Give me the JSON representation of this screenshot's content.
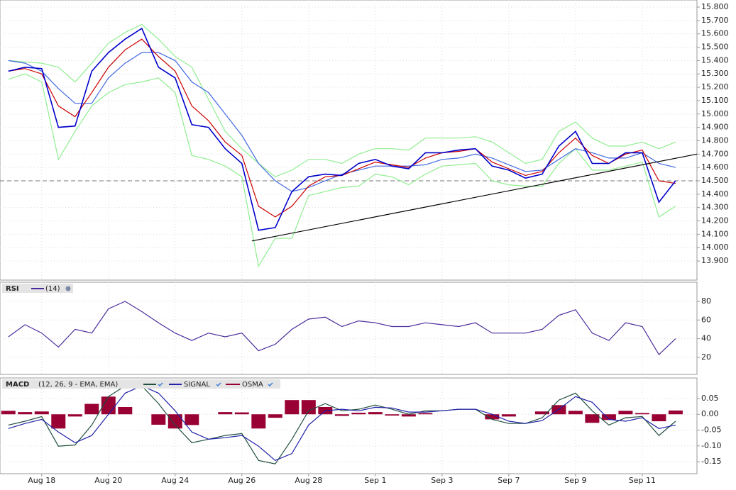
{
  "chart_data": [
    {
      "type": "line",
      "x": [
        -1,
        -0.5,
        0,
        0.5,
        1,
        1.5,
        2,
        2.5,
        3,
        3.5,
        4,
        4.5,
        5,
        5.5,
        6,
        6.5,
        7,
        7.5,
        8,
        8.5,
        9,
        9.5,
        10,
        10.5,
        11,
        11.5,
        12,
        12.5,
        13,
        13.5,
        14,
        14.5,
        15,
        15.5,
        16,
        16.5,
        17,
        17.5,
        18,
        18.5,
        19
      ],
      "xlim": [
        -1.25,
        19.64
      ],
      "ylim": [
        13.757,
        15.853
      ],
      "yticks": [
        {
          "value": 15.8,
          "label": "15.800"
        },
        {
          "value": 15.7,
          "label": "15.700"
        },
        {
          "value": 15.6,
          "label": "15.600"
        },
        {
          "value": 15.5,
          "label": "15.500"
        },
        {
          "value": 15.4,
          "label": "15.400"
        },
        {
          "value": 15.3,
          "label": "15.300"
        },
        {
          "value": 15.2,
          "label": "15.200"
        },
        {
          "value": 15.1,
          "label": "15.100"
        },
        {
          "value": 15,
          "label": "15.000"
        },
        {
          "value": 14.9,
          "label": "14.900"
        },
        {
          "value": 14.8,
          "label": "14.800"
        },
        {
          "value": 14.7,
          "label": "14.700"
        },
        {
          "value": 14.6,
          "label": "14.600"
        },
        {
          "value": 14.5,
          "label": "14.500"
        },
        {
          "value": 14.4,
          "label": "14.400"
        },
        {
          "value": 14.3,
          "label": "14.300"
        },
        {
          "value": 14.2,
          "label": "14.200"
        },
        {
          "value": 14.1,
          "label": "14.100"
        },
        {
          "value": 14,
          "label": "14.000"
        },
        {
          "value": 13.9,
          "label": "13.900"
        }
      ],
      "grid": true,
      "reference_line": 14.5,
      "trendline": {
        "x": [
          6.3,
          19.64
        ],
        "values": [
          14.05,
          14.7
        ],
        "color": "#000000"
      },
      "series": [
        {
          "color": "#90ee90",
          "values": [
            15.4,
            15.39,
            15.38,
            15.35,
            15.24,
            15.38,
            15.53,
            15.61,
            15.67,
            15.56,
            15.43,
            15.35,
            15.11,
            14.87,
            14.74,
            14.63,
            14.53,
            14.58,
            14.66,
            14.66,
            14.63,
            14.7,
            14.74,
            14.74,
            14.73,
            14.82,
            14.82,
            14.82,
            14.83,
            14.79,
            14.71,
            14.63,
            14.66,
            14.87,
            14.94,
            14.82,
            14.76,
            14.76,
            14.79,
            14.74,
            14.79
          ]
        },
        {
          "color": "#90ee90",
          "values": [
            15.26,
            15.3,
            15.24,
            14.66,
            14.87,
            15.06,
            15.16,
            15.22,
            15.24,
            15.27,
            15.16,
            14.69,
            14.66,
            14.61,
            14.53,
            13.86,
            14.07,
            14.07,
            14.39,
            14.42,
            14.45,
            14.46,
            14.55,
            14.53,
            14.47,
            14.55,
            14.61,
            14.62,
            14.63,
            14.5,
            14.47,
            14.46,
            14.46,
            14.63,
            14.74,
            14.58,
            14.58,
            14.61,
            14.64,
            14.23,
            14.31
          ]
        },
        {
          "color": "#4169e1",
          "values": [
            15.4,
            15.38,
            15.32,
            15.19,
            15.08,
            15.08,
            15.27,
            15.38,
            15.46,
            15.46,
            15.4,
            15.24,
            15.16,
            15.0,
            14.84,
            14.63,
            14.5,
            14.42,
            14.45,
            14.5,
            14.55,
            14.58,
            14.61,
            14.61,
            14.61,
            14.62,
            14.66,
            14.67,
            14.7,
            14.67,
            14.62,
            14.57,
            14.58,
            14.66,
            14.74,
            14.71,
            14.67,
            14.67,
            14.71,
            14.63,
            14.6
          ]
        },
        {
          "color": "#cc0000",
          "values": [
            15.32,
            15.34,
            15.3,
            15.06,
            14.98,
            15.16,
            15.35,
            15.48,
            15.56,
            15.43,
            15.32,
            15.06,
            14.95,
            14.79,
            14.69,
            14.31,
            14.23,
            14.31,
            14.46,
            14.53,
            14.54,
            14.59,
            14.64,
            14.62,
            14.6,
            14.67,
            14.71,
            14.72,
            14.74,
            14.64,
            14.59,
            14.54,
            14.57,
            14.71,
            14.82,
            14.69,
            14.63,
            14.7,
            14.73,
            14.5,
            14.48
          ]
        },
        {
          "color": "#0000cc",
          "values": [
            15.32,
            15.35,
            15.34,
            14.9,
            14.91,
            15.32,
            15.46,
            15.56,
            15.64,
            15.35,
            15.27,
            14.92,
            14.9,
            14.74,
            14.63,
            14.13,
            14.15,
            14.42,
            14.53,
            14.55,
            14.54,
            14.63,
            14.66,
            14.61,
            14.59,
            14.71,
            14.71,
            14.73,
            14.74,
            14.61,
            14.58,
            14.52,
            14.55,
            14.76,
            14.87,
            14.63,
            14.63,
            14.71,
            14.71,
            14.34,
            14.5
          ]
        }
      ]
    },
    {
      "type": "line",
      "title": "RSI",
      "parameters": "(14)",
      "x": [
        -1,
        -0.5,
        0,
        0.5,
        1,
        1.5,
        2,
        2.5,
        3,
        3.5,
        4,
        4.5,
        5,
        5.5,
        6,
        6.5,
        7,
        7.5,
        8,
        8.5,
        9,
        9.5,
        10,
        10.5,
        11,
        11.5,
        12,
        12.5,
        13,
        13.5,
        14,
        14.5,
        15,
        15.5,
        16,
        16.5,
        17,
        17.5,
        18,
        18.5,
        19
      ],
      "xlim": [
        -1.25,
        19.64
      ],
      "ylim": [
        1.7,
        100.5
      ],
      "yticks": [
        80,
        60,
        40,
        20
      ],
      "grid": true,
      "series": [
        {
          "color": "#4b2c9c",
          "values": [
            42,
            55,
            46,
            31,
            50,
            46,
            72,
            80,
            69,
            57,
            46,
            38,
            46,
            42,
            46,
            27,
            34,
            50,
            61,
            63,
            53,
            59,
            57,
            53,
            53,
            57,
            55,
            53,
            57,
            46,
            46,
            46,
            50,
            65,
            71,
            46,
            38,
            57,
            53,
            23,
            40
          ]
        }
      ]
    },
    {
      "type": "line",
      "title": "MACD",
      "parameters": "(12, 26, 9 - EMA, EMA)",
      "x": [
        -1,
        -0.5,
        0,
        0.5,
        1,
        1.5,
        2,
        2.5,
        3,
        3.5,
        4,
        4.5,
        5,
        5.5,
        6,
        6.5,
        7,
        7.5,
        8,
        8.5,
        9,
        9.5,
        10,
        10.5,
        11,
        11.5,
        12,
        12.5,
        13,
        13.5,
        14,
        14.5,
        15,
        15.5,
        16,
        16.5,
        17,
        17.5,
        18,
        18.5,
        19
      ],
      "xlim": [
        -1.25,
        19.64
      ],
      "xticks": [
        {
          "value": 0,
          "label": "Aug 18"
        },
        {
          "value": 2,
          "label": "Aug 20"
        },
        {
          "value": 4,
          "label": "Aug 24"
        },
        {
          "value": 6,
          "label": "Aug 26"
        },
        {
          "value": 8,
          "label": "Aug 28"
        },
        {
          "value": 10,
          "label": "Sep 1"
        },
        {
          "value": 12,
          "label": "Sep 3"
        },
        {
          "value": 14,
          "label": "Sep 7"
        },
        {
          "value": 16,
          "label": "Sep 9"
        },
        {
          "value": 18,
          "label": "Sep 11"
        }
      ],
      "ylim": [
        -0.188,
        0.115
      ],
      "yticks": [
        0.05,
        {
          "value": 0,
          "label": "0.00"
        },
        -0.05,
        {
          "value": -0.1,
          "label": "-0.10"
        },
        -0.15
      ],
      "grid": true,
      "series": [
        {
          "style": "bar",
          "name": "OSMA",
          "color": "#990033",
          "values": [
            0.011,
            0.007,
            0.009,
            -0.045,
            -0.007,
            0.033,
            0.056,
            0.023,
            0,
            -0.033,
            -0.045,
            -0.034,
            0,
            0.007,
            0.006,
            -0.045,
            -0.011,
            0.045,
            0.045,
            0.023,
            -0.005,
            0.005,
            0.007,
            -0.004,
            -0.007,
            0.004,
            0,
            0,
            0,
            -0.016,
            -0.007,
            0,
            0.009,
            0.029,
            0.011,
            -0.027,
            -0.018,
            0.011,
            0.004,
            -0.022,
            0.012
          ]
        },
        {
          "color": "#1f4f3f",
          "values": [
            -0.034,
            -0.022,
            -0.007,
            -0.101,
            -0.097,
            -0.034,
            0.056,
            0.09,
            0.09,
            0.034,
            -0.034,
            -0.09,
            -0.079,
            -0.067,
            -0.061,
            -0.146,
            -0.157,
            -0.079,
            0.011,
            0.034,
            0.011,
            0.016,
            0.029,
            0.016,
            0,
            0.011,
            0.011,
            0.016,
            0.016,
            -0.016,
            -0.029,
            -0.029,
            -0.011,
            0.045,
            0.067,
            0.011,
            -0.034,
            -0.011,
            -0.007,
            -0.067,
            -0.022
          ]
        },
        {
          "name": "SIGNAL",
          "color": "#2222aa",
          "values": [
            -0.045,
            -0.029,
            -0.016,
            -0.056,
            -0.09,
            -0.067,
            0,
            0.067,
            0.09,
            0.067,
            0.011,
            -0.056,
            -0.079,
            -0.074,
            -0.067,
            -0.101,
            -0.146,
            -0.124,
            -0.034,
            0.011,
            0.016,
            0.011,
            0.022,
            0.02,
            0.007,
            0.007,
            0.011,
            0.016,
            0.016,
            0,
            -0.022,
            -0.029,
            -0.02,
            0.016,
            0.056,
            0.038,
            -0.016,
            -0.022,
            -0.011,
            -0.045,
            -0.034
          ]
        }
      ]
    }
  ]
}
